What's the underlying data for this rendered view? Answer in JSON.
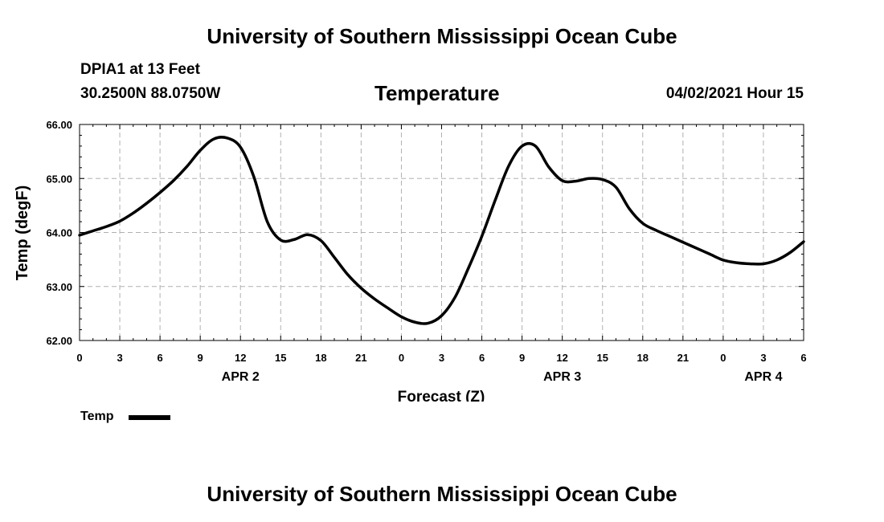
{
  "header": {
    "title": "University of Southern Mississippi Ocean Cube",
    "station": "DPIA1 at 13 Feet",
    "coords": "30.2500N  88.0750W",
    "chart_title": "Temperature",
    "datetime": "04/02/2021 Hour 15"
  },
  "footer": {
    "title": "University of Southern Mississippi Ocean Cube"
  },
  "legend": {
    "label": "Temp"
  },
  "colors": {
    "line": "#000000",
    "grid": "#b0b0b0"
  },
  "chart_data": {
    "type": "line",
    "title": "Temperature",
    "xlabel": "Forecast (Z)",
    "ylabel": "Temp (degF)",
    "ylim": [
      62.0,
      66.0
    ],
    "xlim": [
      0,
      54
    ],
    "grid": true,
    "legend_position": "bottom-left",
    "yticks": [
      62.0,
      63.0,
      64.0,
      65.0,
      66.0
    ],
    "ytick_labels": [
      "62.00",
      "63.00",
      "64.00",
      "65.00",
      "66.00"
    ],
    "xticks": [
      0,
      3,
      6,
      9,
      12,
      15,
      18,
      21,
      24,
      27,
      30,
      33,
      36,
      39,
      42,
      45,
      48,
      51,
      54
    ],
    "xtick_labels": [
      "0",
      "3",
      "6",
      "9",
      "12",
      "15",
      "18",
      "21",
      "0",
      "3",
      "6",
      "9",
      "12",
      "15",
      "18",
      "21",
      "0",
      "3",
      "6"
    ],
    "date_labels": [
      {
        "hour": 12,
        "label": "APR 2"
      },
      {
        "hour": 36,
        "label": "APR 3"
      },
      {
        "hour": 51,
        "label": "APR 4"
      }
    ],
    "series": [
      {
        "name": "Temp",
        "x": [
          0,
          1,
          2,
          3,
          4,
          5,
          6,
          7,
          8,
          9,
          10,
          11,
          12,
          13,
          14,
          15,
          16,
          17,
          18,
          19,
          20,
          21,
          22,
          23,
          24,
          25,
          26,
          27,
          28,
          29,
          30,
          31,
          32,
          33,
          34,
          35,
          36,
          37,
          38,
          39,
          40,
          41,
          42,
          43,
          44,
          45,
          46,
          47,
          48,
          49,
          50,
          51,
          52,
          53,
          54
        ],
        "values": [
          63.95,
          64.03,
          64.11,
          64.21,
          64.36,
          64.54,
          64.74,
          64.96,
          65.22,
          65.52,
          65.73,
          65.75,
          65.58,
          65.03,
          64.2,
          63.86,
          63.87,
          63.96,
          63.85,
          63.54,
          63.22,
          62.97,
          62.77,
          62.6,
          62.44,
          62.34,
          62.32,
          62.46,
          62.8,
          63.34,
          63.93,
          64.6,
          65.23,
          65.6,
          65.6,
          65.21,
          64.96,
          64.95,
          65.0,
          64.98,
          64.84,
          64.44,
          64.17,
          64.04,
          63.93,
          63.82,
          63.71,
          63.6,
          63.49,
          63.44,
          63.42,
          63.42,
          63.49,
          63.63,
          63.83
        ]
      }
    ]
  }
}
